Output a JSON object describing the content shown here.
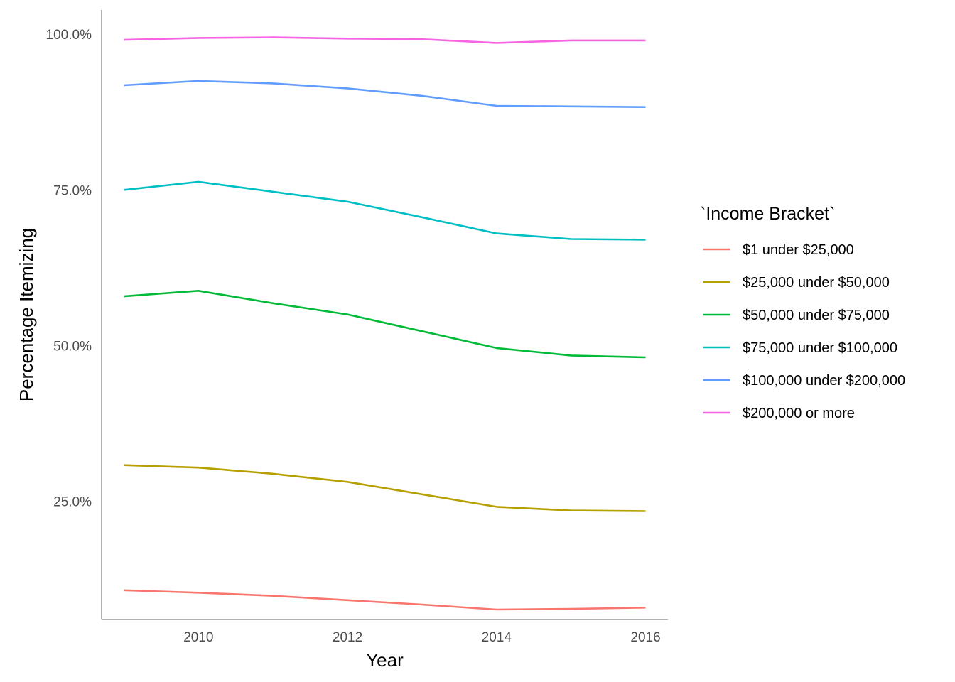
{
  "chart_data": {
    "type": "line",
    "title": "",
    "xlabel": "Year",
    "ylabel": "Percentage Itemizing",
    "x": [
      2009,
      2010,
      2011,
      2012,
      2013,
      2014,
      2015,
      2016
    ],
    "xlim": [
      2008.7,
      2016.3
    ],
    "ylim": [
      6.0,
      103.9
    ],
    "x_ticks": [
      2010,
      2012,
      2014,
      2016
    ],
    "x_tick_labels": [
      "2010",
      "2012",
      "2014",
      "2016"
    ],
    "y_ticks": [
      25,
      50,
      75,
      100
    ],
    "y_tick_labels": [
      "25.0%",
      "50.0%",
      "75.0%",
      "100.0%"
    ],
    "grid": false,
    "legend": {
      "title": "`Income Bracket`",
      "position": "right"
    },
    "series": [
      {
        "name": "$1 under $25,000",
        "color": "#F8766D",
        "values": [
          10.7,
          10.3,
          9.8,
          9.1,
          8.4,
          7.6,
          7.7,
          7.9
        ]
      },
      {
        "name": "$25,000 under $50,000",
        "color": "#B79F00",
        "values": [
          30.8,
          30.4,
          29.4,
          28.1,
          26.1,
          24.1,
          23.5,
          23.4
        ]
      },
      {
        "name": "$50,000 under $75,000",
        "color": "#00BA38",
        "values": [
          57.9,
          58.8,
          56.8,
          55.0,
          52.3,
          49.6,
          48.4,
          48.1
        ]
      },
      {
        "name": "$75,000 under $100,000",
        "color": "#00BFC4",
        "values": [
          75.0,
          76.3,
          74.7,
          73.1,
          70.6,
          68.0,
          67.1,
          67.0
        ]
      },
      {
        "name": "$100,000 under $200,000",
        "color": "#619CFF",
        "values": [
          91.8,
          92.5,
          92.1,
          91.3,
          90.1,
          88.5,
          88.4,
          88.3
        ]
      },
      {
        "name": "$200,000 or more",
        "color": "#F564E3",
        "values": [
          99.1,
          99.4,
          99.5,
          99.3,
          99.2,
          98.6,
          99.0,
          99.0
        ]
      }
    ]
  }
}
